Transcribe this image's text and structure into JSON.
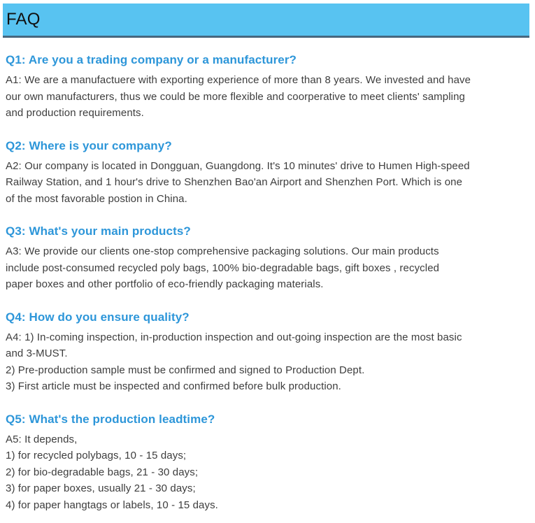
{
  "colors": {
    "header_bg": "#58c3f1",
    "header_border": "#47677f",
    "question_blue": "#2d96d9",
    "body_text": "#3d3d3d",
    "title_text": "#111111"
  },
  "header": {
    "title": "FAQ"
  },
  "sections": [
    {
      "question": "Q1: Are you a trading company or a manufacturer?",
      "answer_lines": [
        "A1: We are a manufactuere with exporting experience of more than 8 years. We invested and have",
        "our own manufacturers, thus we could be more flexible and coorperative to meet clients' sampling",
        "and production requirements."
      ]
    },
    {
      "question": "Q2: Where is your company?",
      "answer_lines": [
        "A2: Our company is located in Dongguan, Guangdong. It's 10 minutes' drive to Humen High-speed",
        "Railway Station, and 1 hour's drive to Shenzhen Bao'an Airport and Shenzhen Port. Which is one",
        "of the most favorable postion in China."
      ]
    },
    {
      "question": "Q3: What's your main products?",
      "answer_lines": [
        "A3: We provide our clients one-stop comprehensive packaging solutions. Our main products",
        "include post-consumed recycled poly bags, 100% bio-degradable bags, gift boxes , recycled",
        "paper boxes and other portfolio of eco-friendly packaging materials."
      ]
    },
    {
      "question": "Q4: How do you ensure quality?",
      "answer_lines": [
        "A4: 1) In-coming inspection, in-production inspection and out-going inspection are the most basic",
        "and 3-MUST.",
        "2) Pre-production sample must be confirmed and signed to Production Dept.",
        "3) First article must be inspected and confirmed before bulk production."
      ]
    },
    {
      "question": "Q5: What's the production leadtime?",
      "answer_lines": [
        "A5: It depends,",
        "1) for recycled polybags, 10 - 15 days;",
        "2) for bio-degradable bags, 21 - 30 days;",
        "3) for paper boxes, usually 21 - 30 days;",
        "4) for paper hangtags or labels, 10 - 15 days."
      ]
    }
  ]
}
